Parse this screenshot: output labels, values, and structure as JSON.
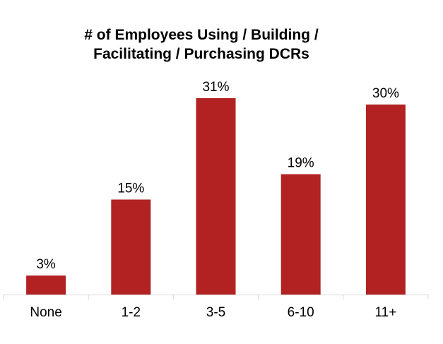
{
  "chart_data": {
    "type": "bar",
    "title_lines": [
      "# of Employees Using / Building /",
      "Facilitating / Purchasing DCRs"
    ],
    "categories": [
      "None",
      "1-2",
      "3-5",
      "6-10",
      "11+"
    ],
    "values": [
      3,
      15,
      31,
      19,
      30
    ],
    "data_labels": [
      "3%",
      "15%",
      "31%",
      "19%",
      "30%"
    ],
    "unit": "%",
    "ylim": [
      0,
      31
    ],
    "bar_color": "#b22222",
    "axis_color": "#d9d9d9",
    "grid": false,
    "legend": "none"
  }
}
